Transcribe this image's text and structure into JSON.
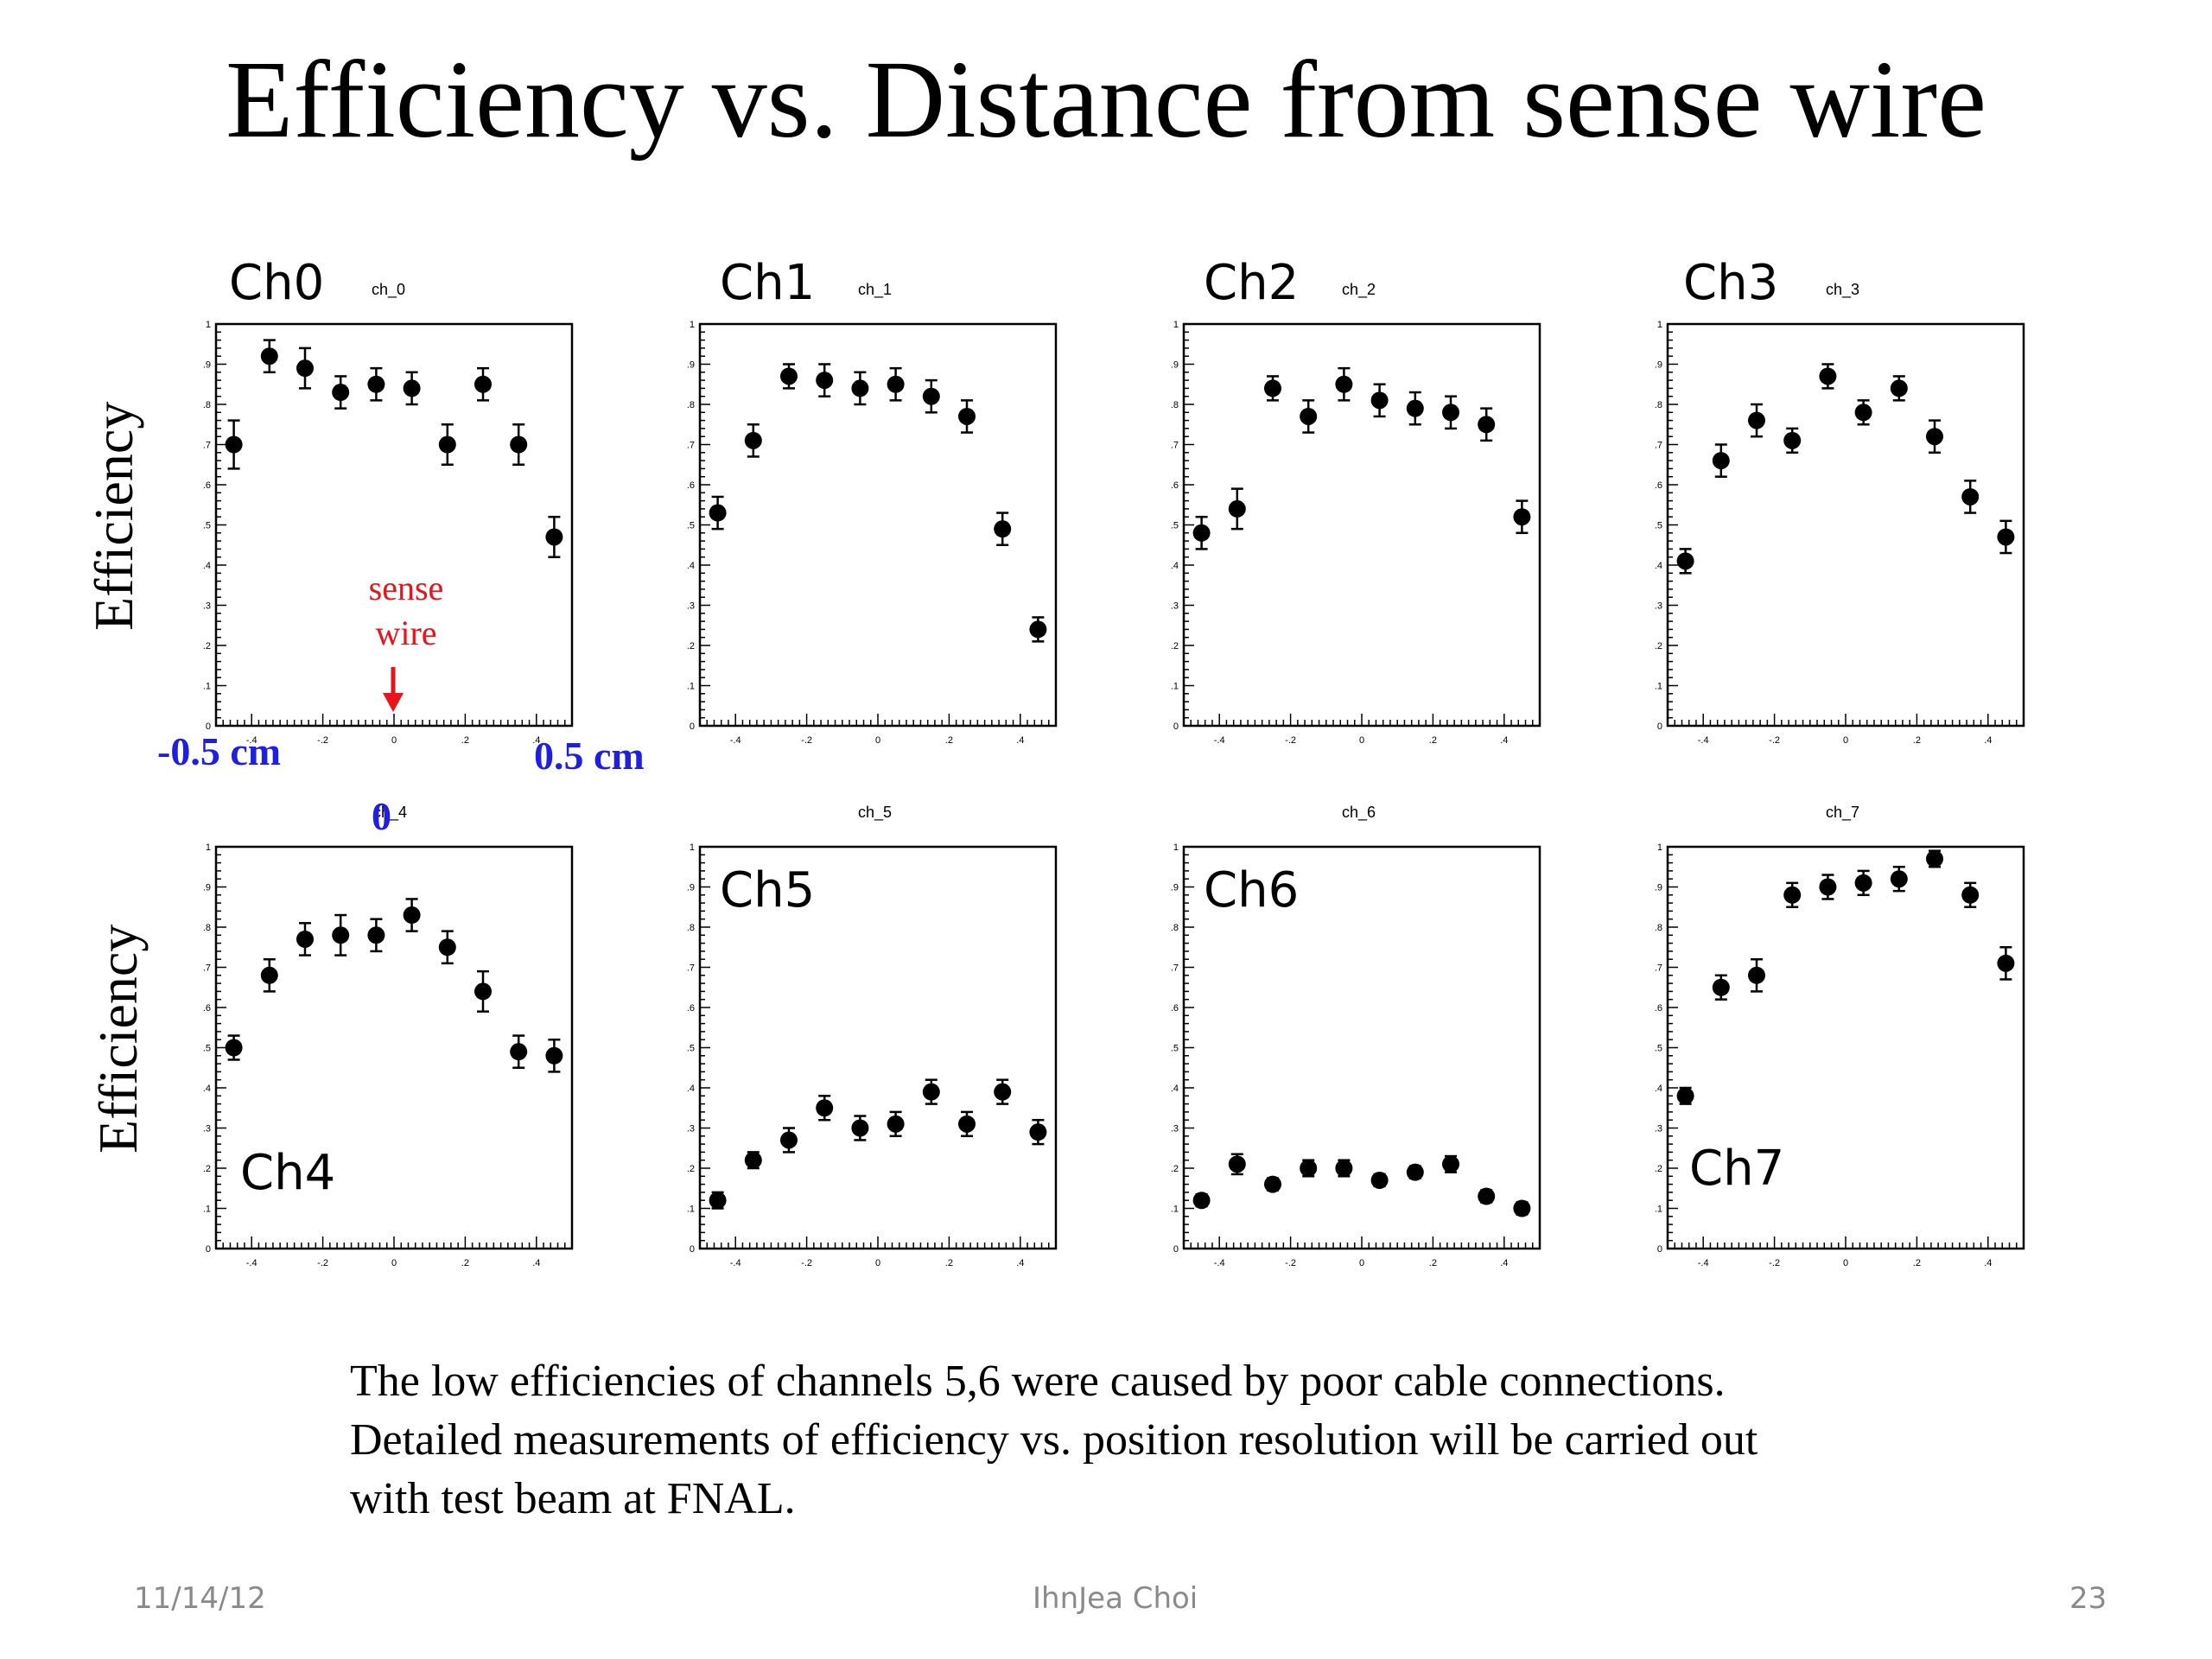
{
  "slide": {
    "title": "Efficiency vs. Distance from sense wire",
    "y_label": "Efficiency",
    "notes": [
      "The low efficiencies of channels 5,6 were caused by poor cable connections.",
      "Detailed measurements of efficiency vs. position resolution will be carried out",
      "with test beam at FNAL."
    ],
    "footer": {
      "date": "11/14/12",
      "author": "IhnJea Choi",
      "page": "23"
    },
    "annotations": {
      "sense_wire": "sense\nwire",
      "left_edge": "-0.5 cm",
      "right_edge": "0.5 cm",
      "zero": "0"
    },
    "colors": {
      "annotation_red": "#e8141b",
      "annotation_blue": "#1f1fe0",
      "marker": "#000000"
    }
  },
  "chart_data": [
    {
      "type": "scatter",
      "title": "ch_0",
      "channel_label": "Ch0",
      "xlim": [
        -0.5,
        0.5
      ],
      "ylim": [
        0,
        1
      ],
      "x_ticks": [
        -0.4,
        -0.2,
        0,
        0.2,
        0.4
      ],
      "y_ticks": [
        0,
        0.1,
        0.2,
        0.3,
        0.4,
        0.5,
        0.6,
        0.7,
        0.8,
        0.9,
        1
      ],
      "x": [
        -0.45,
        -0.35,
        -0.25,
        -0.15,
        -0.05,
        0.05,
        0.15,
        0.25,
        0.35,
        0.45
      ],
      "y": [
        0.7,
        0.92,
        0.89,
        0.83,
        0.85,
        0.84,
        0.7,
        0.85,
        0.7,
        0.47
      ],
      "yerr": [
        0.06,
        0.04,
        0.05,
        0.04,
        0.04,
        0.04,
        0.05,
        0.04,
        0.05,
        0.05
      ]
    },
    {
      "type": "scatter",
      "title": "ch_1",
      "channel_label": "Ch1",
      "xlim": [
        -0.5,
        0.5
      ],
      "ylim": [
        0,
        1
      ],
      "x_ticks": [
        -0.4,
        -0.2,
        0,
        0.2,
        0.4
      ],
      "y_ticks": [
        0,
        0.1,
        0.2,
        0.3,
        0.4,
        0.5,
        0.6,
        0.7,
        0.8,
        0.9,
        1
      ],
      "x": [
        -0.45,
        -0.35,
        -0.25,
        -0.15,
        -0.05,
        0.05,
        0.15,
        0.25,
        0.35,
        0.45
      ],
      "y": [
        0.53,
        0.71,
        0.87,
        0.86,
        0.84,
        0.85,
        0.82,
        0.77,
        0.49,
        0.24
      ],
      "yerr": [
        0.04,
        0.04,
        0.03,
        0.04,
        0.04,
        0.04,
        0.04,
        0.04,
        0.04,
        0.03
      ]
    },
    {
      "type": "scatter",
      "title": "ch_2",
      "channel_label": "Ch2",
      "xlim": [
        -0.5,
        0.5
      ],
      "ylim": [
        0,
        1
      ],
      "x_ticks": [
        -0.4,
        -0.2,
        0,
        0.2,
        0.4
      ],
      "y_ticks": [
        0,
        0.1,
        0.2,
        0.3,
        0.4,
        0.5,
        0.6,
        0.7,
        0.8,
        0.9,
        1
      ],
      "x": [
        -0.45,
        -0.35,
        -0.25,
        -0.15,
        -0.05,
        0.05,
        0.15,
        0.25,
        0.35,
        0.45
      ],
      "y": [
        0.48,
        0.54,
        0.84,
        0.77,
        0.85,
        0.81,
        0.79,
        0.78,
        0.75,
        0.52
      ],
      "yerr": [
        0.04,
        0.05,
        0.03,
        0.04,
        0.04,
        0.04,
        0.04,
        0.04,
        0.04,
        0.04
      ]
    },
    {
      "type": "scatter",
      "title": "ch_3",
      "channel_label": "Ch3",
      "xlim": [
        -0.5,
        0.5
      ],
      "ylim": [
        0,
        1
      ],
      "x_ticks": [
        -0.4,
        -0.2,
        0,
        0.2,
        0.4
      ],
      "y_ticks": [
        0,
        0.1,
        0.2,
        0.3,
        0.4,
        0.5,
        0.6,
        0.7,
        0.8,
        0.9,
        1
      ],
      "x": [
        -0.45,
        -0.35,
        -0.25,
        -0.15,
        -0.05,
        0.05,
        0.15,
        0.25,
        0.35,
        0.45
      ],
      "y": [
        0.41,
        0.66,
        0.76,
        0.71,
        0.87,
        0.78,
        0.84,
        0.72,
        0.57,
        0.47
      ],
      "yerr": [
        0.03,
        0.04,
        0.04,
        0.03,
        0.03,
        0.03,
        0.03,
        0.04,
        0.04,
        0.04
      ]
    },
    {
      "type": "scatter",
      "title": "ch_4",
      "channel_label": "Ch4",
      "xlim": [
        -0.5,
        0.5
      ],
      "ylim": [
        0,
        1
      ],
      "x_ticks": [
        -0.4,
        -0.2,
        0,
        0.2,
        0.4
      ],
      "y_ticks": [
        0,
        0.1,
        0.2,
        0.3,
        0.4,
        0.5,
        0.6,
        0.7,
        0.8,
        0.9,
        1
      ],
      "x": [
        -0.45,
        -0.35,
        -0.25,
        -0.15,
        -0.05,
        0.05,
        0.15,
        0.25,
        0.35,
        0.45
      ],
      "y": [
        0.5,
        0.68,
        0.77,
        0.78,
        0.78,
        0.83,
        0.75,
        0.64,
        0.49,
        0.48
      ],
      "yerr": [
        0.03,
        0.04,
        0.04,
        0.05,
        0.04,
        0.04,
        0.04,
        0.05,
        0.04,
        0.04
      ]
    },
    {
      "type": "scatter",
      "title": "ch_5",
      "channel_label": "Ch5",
      "xlim": [
        -0.5,
        0.5
      ],
      "ylim": [
        0,
        1
      ],
      "x_ticks": [
        -0.4,
        -0.2,
        0,
        0.2,
        0.4
      ],
      "y_ticks": [
        0,
        0.1,
        0.2,
        0.3,
        0.4,
        0.5,
        0.6,
        0.7,
        0.8,
        0.9,
        1
      ],
      "x": [
        -0.45,
        -0.35,
        -0.25,
        -0.15,
        -0.05,
        0.05,
        0.15,
        0.25,
        0.35,
        0.45
      ],
      "y": [
        0.12,
        0.22,
        0.27,
        0.35,
        0.3,
        0.31,
        0.39,
        0.31,
        0.39,
        0.29
      ],
      "yerr": [
        0.02,
        0.02,
        0.03,
        0.03,
        0.03,
        0.03,
        0.03,
        0.03,
        0.03,
        0.03
      ]
    },
    {
      "type": "scatter",
      "title": "ch_6",
      "channel_label": "Ch6",
      "xlim": [
        -0.5,
        0.5
      ],
      "ylim": [
        0,
        1
      ],
      "x_ticks": [
        -0.4,
        -0.2,
        0,
        0.2,
        0.4
      ],
      "y_ticks": [
        0,
        0.1,
        0.2,
        0.3,
        0.4,
        0.5,
        0.6,
        0.7,
        0.8,
        0.9,
        1
      ],
      "x": [
        -0.45,
        -0.35,
        -0.25,
        -0.15,
        -0.05,
        0.05,
        0.15,
        0.25,
        0.35,
        0.45
      ],
      "y": [
        0.12,
        0.21,
        0.16,
        0.2,
        0.2,
        0.17,
        0.19,
        0.21,
        0.13,
        0.1
      ],
      "yerr": [
        0.015,
        0.025,
        0.015,
        0.02,
        0.02,
        0.015,
        0.015,
        0.02,
        0.015,
        0.015
      ]
    },
    {
      "type": "scatter",
      "title": "ch_7",
      "channel_label": "Ch7",
      "xlim": [
        -0.5,
        0.5
      ],
      "ylim": [
        0,
        1
      ],
      "x_ticks": [
        -0.4,
        -0.2,
        0,
        0.2,
        0.4
      ],
      "y_ticks": [
        0,
        0.1,
        0.2,
        0.3,
        0.4,
        0.5,
        0.6,
        0.7,
        0.8,
        0.9,
        1
      ],
      "x": [
        -0.45,
        -0.35,
        -0.25,
        -0.15,
        -0.05,
        0.05,
        0.15,
        0.25,
        0.35,
        0.45
      ],
      "y": [
        0.38,
        0.65,
        0.68,
        0.88,
        0.9,
        0.91,
        0.92,
        0.97,
        0.88,
        0.71
      ],
      "yerr": [
        0.02,
        0.03,
        0.04,
        0.03,
        0.03,
        0.03,
        0.03,
        0.02,
        0.03,
        0.04
      ]
    }
  ]
}
